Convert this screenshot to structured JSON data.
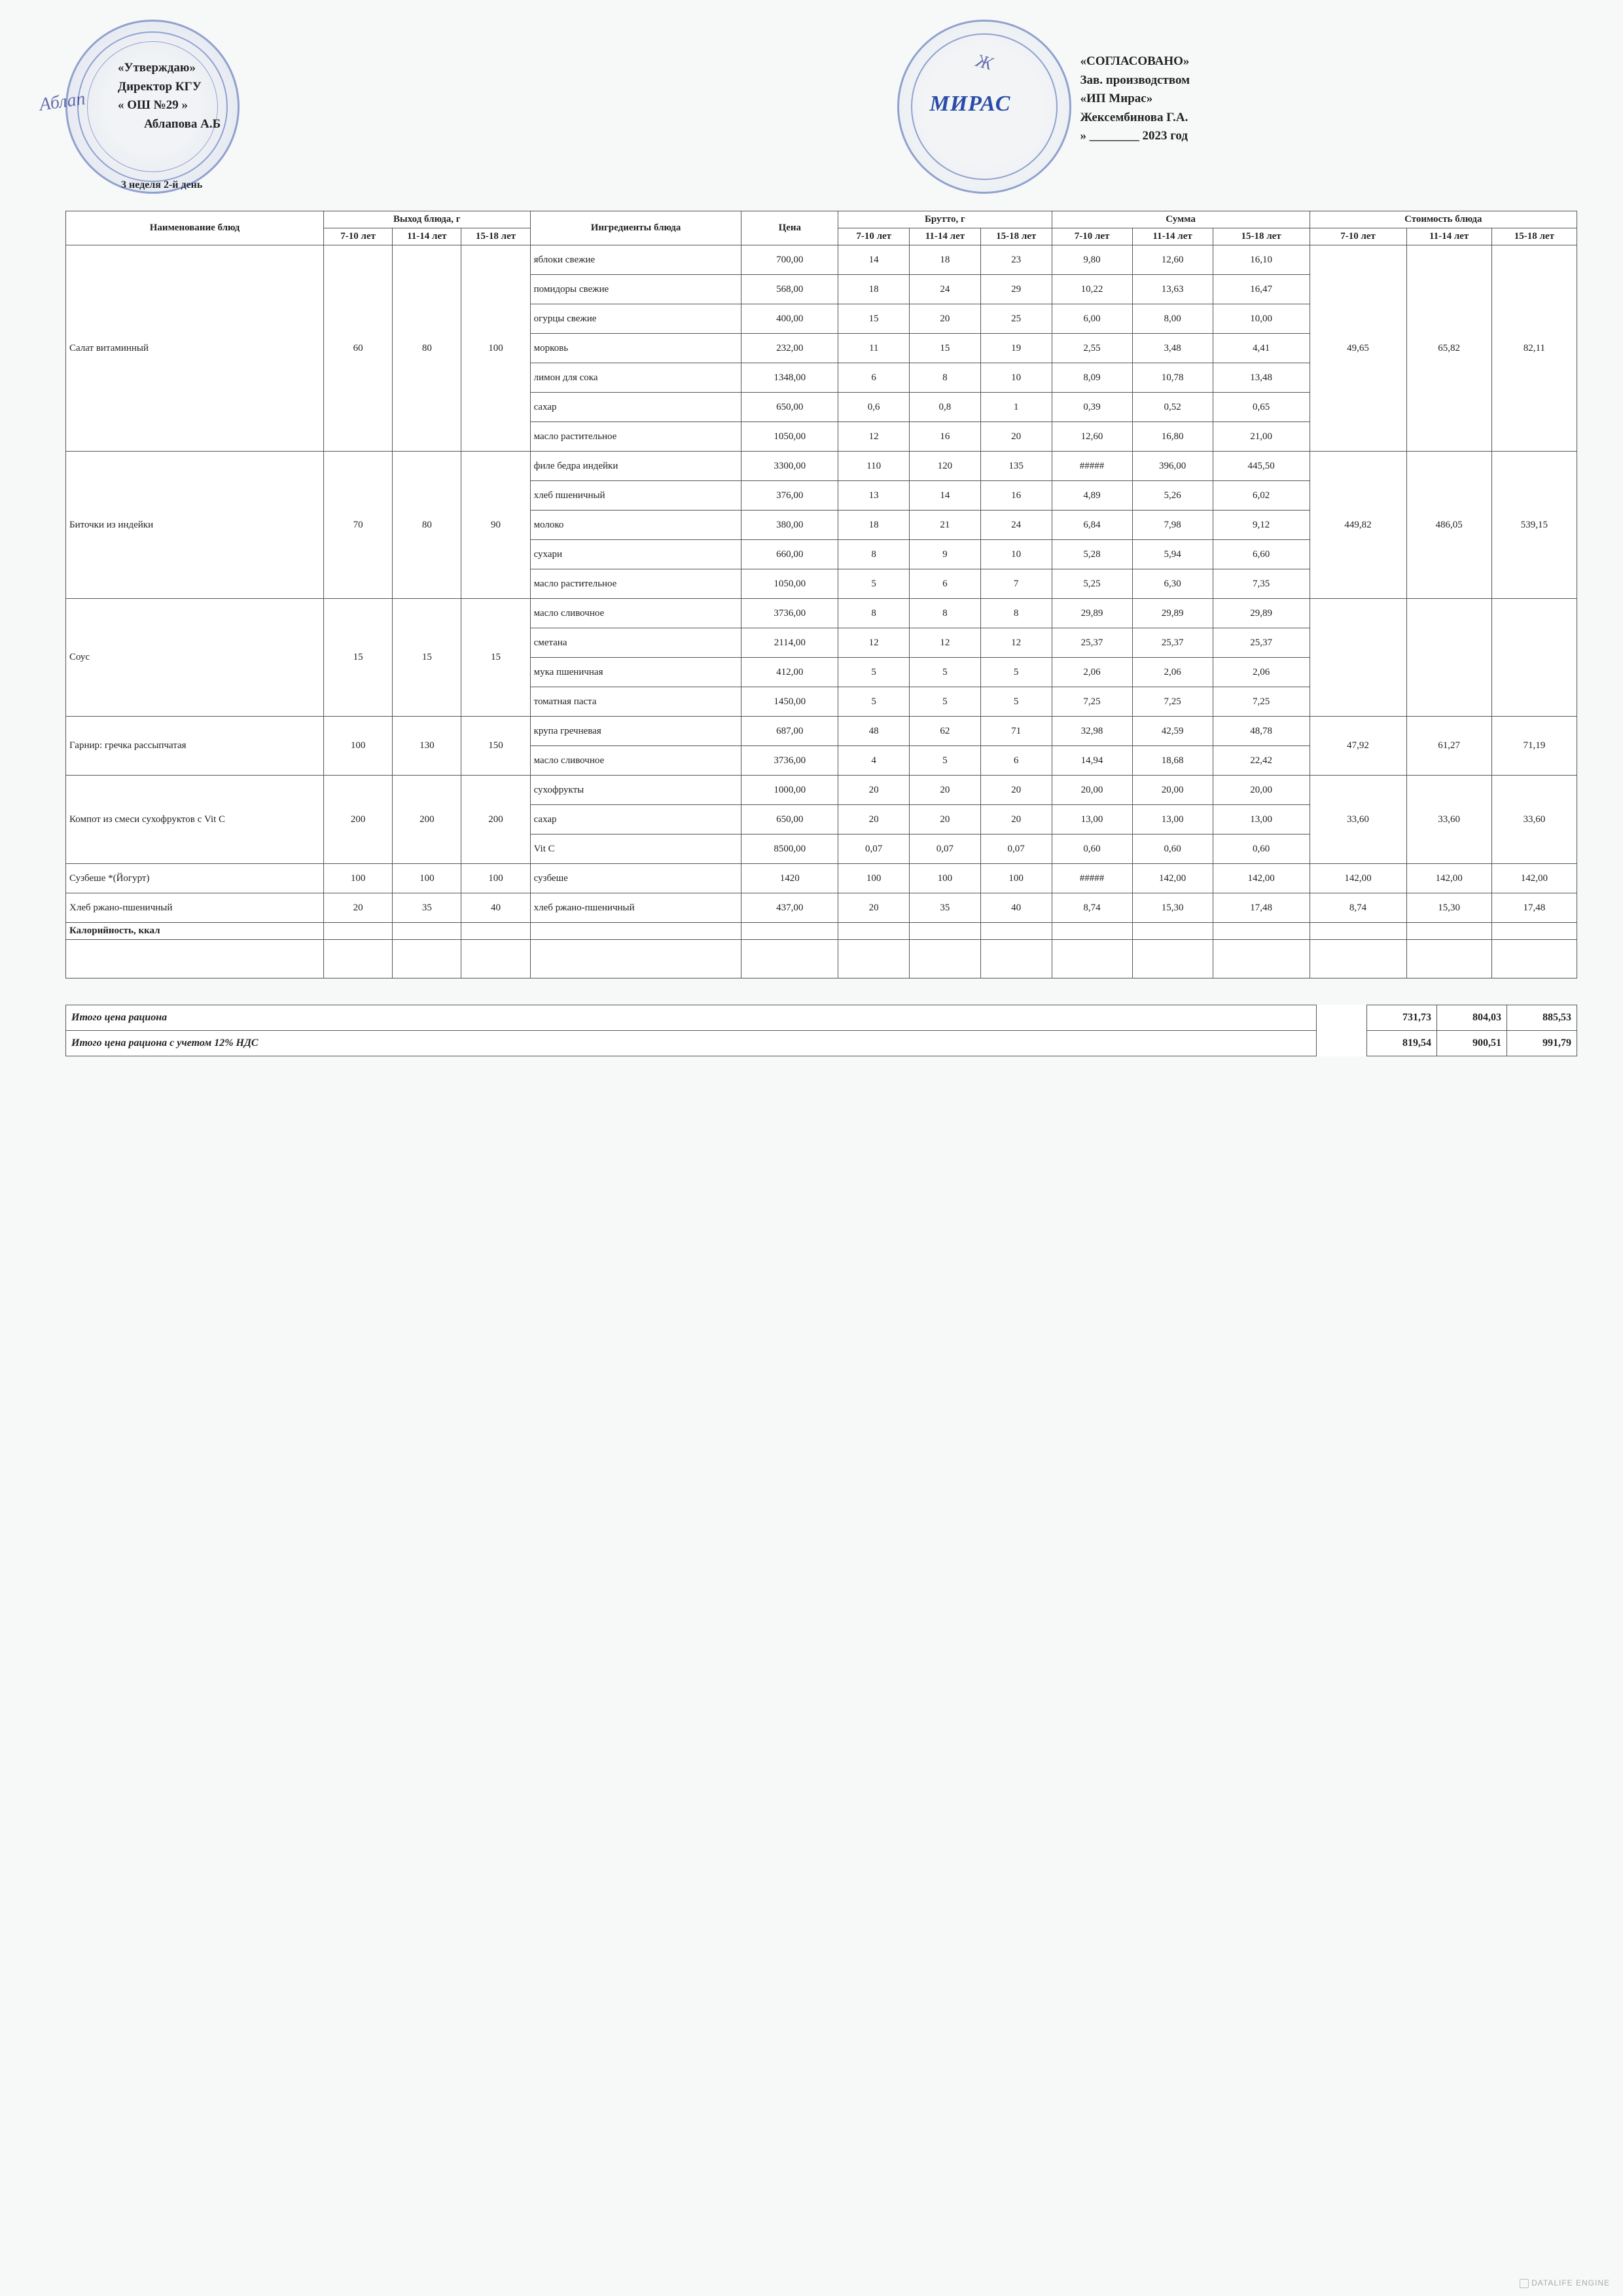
{
  "approve": {
    "title": "«Утверждаю»",
    "line1": "Директор КГУ",
    "line2": "« ОШ №29 »",
    "line3": "Аблапова А.Б",
    "signature": "Аблап",
    "week": "3 неделя 2-й день"
  },
  "agree": {
    "title": "«СОГЛАСОВАНО»",
    "line1": "Зав. производством",
    "line2": "«ИП Мирас»",
    "line3": "Жексембинова Г.А.",
    "line4": "» ________ 2023 год",
    "stamp_brand": "МИРАС"
  },
  "columns": {
    "dish": "Наименование блюд",
    "yield": "Выход блюда, г",
    "ingredients": "Ингредиенты блюда",
    "price": "Цена",
    "brutto": "Брутто, г",
    "sum": "Сумма",
    "cost": "Стоимость блюда",
    "y1": "7-10 лет",
    "y2": "11-14 лет",
    "y3": "15-18 лет",
    "s1": "7-10 лет",
    "s2": "11-14 лет",
    "s3": "15-18 лет"
  },
  "dishes": [
    {
      "name": "Салат витаминный",
      "yield": [
        "60",
        "80",
        "100"
      ],
      "cost": [
        "49,65",
        "65,82",
        "82,11"
      ],
      "ingredients": [
        {
          "n": "яблоки свежие",
          "p": "700,00",
          "b": [
            "14",
            "18",
            "23"
          ],
          "s": [
            "9,80",
            "12,60",
            "16,10"
          ]
        },
        {
          "n": "помидоры свежие",
          "p": "568,00",
          "b": [
            "18",
            "24",
            "29"
          ],
          "s": [
            "10,22",
            "13,63",
            "16,47"
          ]
        },
        {
          "n": "огурцы свежие",
          "p": "400,00",
          "b": [
            "15",
            "20",
            "25"
          ],
          "s": [
            "6,00",
            "8,00",
            "10,00"
          ]
        },
        {
          "n": "морковь",
          "p": "232,00",
          "b": [
            "11",
            "15",
            "19"
          ],
          "s": [
            "2,55",
            "3,48",
            "4,41"
          ]
        },
        {
          "n": "лимон для сока",
          "p": "1348,00",
          "b": [
            "6",
            "8",
            "10"
          ],
          "s": [
            "8,09",
            "10,78",
            "13,48"
          ]
        },
        {
          "n": "сахар",
          "p": "650,00",
          "b": [
            "0,6",
            "0,8",
            "1"
          ],
          "s": [
            "0,39",
            "0,52",
            "0,65"
          ]
        },
        {
          "n": "масло растительное",
          "p": "1050,00",
          "b": [
            "12",
            "16",
            "20"
          ],
          "s": [
            "12,60",
            "16,80",
            "21,00"
          ]
        }
      ]
    },
    {
      "name": "Биточки из индейки",
      "yield": [
        "70",
        "80",
        "90"
      ],
      "cost": [
        "449,82",
        "486,05",
        "539,15"
      ],
      "ingredients": [
        {
          "n": "филе бедра индейки",
          "p": "3300,00",
          "b": [
            "110",
            "120",
            "135"
          ],
          "s": [
            "#####",
            "396,00",
            "445,50"
          ]
        },
        {
          "n": "хлеб пшеничный",
          "p": "376,00",
          "b": [
            "13",
            "14",
            "16"
          ],
          "s": [
            "4,89",
            "5,26",
            "6,02"
          ]
        },
        {
          "n": "молоко",
          "p": "380,00",
          "b": [
            "18",
            "21",
            "24"
          ],
          "s": [
            "6,84",
            "7,98",
            "9,12"
          ]
        },
        {
          "n": "сухари",
          "p": "660,00",
          "b": [
            "8",
            "9",
            "10"
          ],
          "s": [
            "5,28",
            "5,94",
            "6,60"
          ]
        },
        {
          "n": "масло растительное",
          "p": "1050,00",
          "b": [
            "5",
            "6",
            "7"
          ],
          "s": [
            "5,25",
            "6,30",
            "7,35"
          ]
        }
      ]
    },
    {
      "name": "Соус",
      "yield": [
        "15",
        "15",
        "15"
      ],
      "cost": [
        "",
        "",
        ""
      ],
      "ingredients": [
        {
          "n": "масло сливочное",
          "p": "3736,00",
          "b": [
            "8",
            "8",
            "8"
          ],
          "s": [
            "29,89",
            "29,89",
            "29,89"
          ]
        },
        {
          "n": "сметана",
          "p": "2114,00",
          "b": [
            "12",
            "12",
            "12"
          ],
          "s": [
            "25,37",
            "25,37",
            "25,37"
          ]
        },
        {
          "n": "мука пшеничная",
          "p": "412,00",
          "b": [
            "5",
            "5",
            "5"
          ],
          "s": [
            "2,06",
            "2,06",
            "2,06"
          ]
        },
        {
          "n": "томатная паста",
          "p": "1450,00",
          "b": [
            "5",
            "5",
            "5"
          ],
          "s": [
            "7,25",
            "7,25",
            "7,25"
          ]
        }
      ]
    },
    {
      "name": "Гарнир: гречка рассыпчатая",
      "yield": [
        "100",
        "130",
        "150"
      ],
      "cost": [
        "47,92",
        "61,27",
        "71,19"
      ],
      "ingredients": [
        {
          "n": "крупа гречневая",
          "p": "687,00",
          "b": [
            "48",
            "62",
            "71"
          ],
          "s": [
            "32,98",
            "42,59",
            "48,78"
          ]
        },
        {
          "n": "масло сливочное",
          "p": "3736,00",
          "b": [
            "4",
            "5",
            "6"
          ],
          "s": [
            "14,94",
            "18,68",
            "22,42"
          ]
        }
      ]
    },
    {
      "name": "Компот из смеси сухофруктов с Vit C",
      "yield": [
        "200",
        "200",
        "200"
      ],
      "cost": [
        "33,60",
        "33,60",
        "33,60"
      ],
      "ingredients": [
        {
          "n": "сухофрукты",
          "p": "1000,00",
          "b": [
            "20",
            "20",
            "20"
          ],
          "s": [
            "20,00",
            "20,00",
            "20,00"
          ]
        },
        {
          "n": "сахар",
          "p": "650,00",
          "b": [
            "20",
            "20",
            "20"
          ],
          "s": [
            "13,00",
            "13,00",
            "13,00"
          ]
        },
        {
          "n": "Vit C",
          "p": "8500,00",
          "b": [
            "0,07",
            "0,07",
            "0,07"
          ],
          "s": [
            "0,60",
            "0,60",
            "0,60"
          ]
        }
      ]
    },
    {
      "name": "Сузбеше *(Йогурт)",
      "yield": [
        "100",
        "100",
        "100"
      ],
      "cost": [
        "142,00",
        "142,00",
        "142,00"
      ],
      "ingredients": [
        {
          "n": "сузбеше",
          "p": "1420",
          "b": [
            "100",
            "100",
            "100"
          ],
          "s": [
            "#####",
            "142,00",
            "142,00"
          ]
        }
      ]
    },
    {
      "name": "Хлеб ржано-пшеничный",
      "yield": [
        "20",
        "35",
        "40"
      ],
      "cost": [
        "8,74",
        "15,30",
        "17,48"
      ],
      "ingredients": [
        {
          "n": "хлеб ржано-пшеничный",
          "p": "437,00",
          "b": [
            "20",
            "35",
            "40"
          ],
          "s": [
            "8,74",
            "15,30",
            "17,48"
          ]
        }
      ]
    }
  ],
  "calories_label": "Калорийность, ккал",
  "totals": {
    "row1_label": "Итого цена рациона",
    "row1": [
      "731,73",
      "804,03",
      "885,53"
    ],
    "row2_label": "Итого цена рациона с учетом 12% НДС",
    "row2": [
      "819,54",
      "900,51",
      "991,79"
    ]
  },
  "footer": "DATALIFE ENGINE"
}
